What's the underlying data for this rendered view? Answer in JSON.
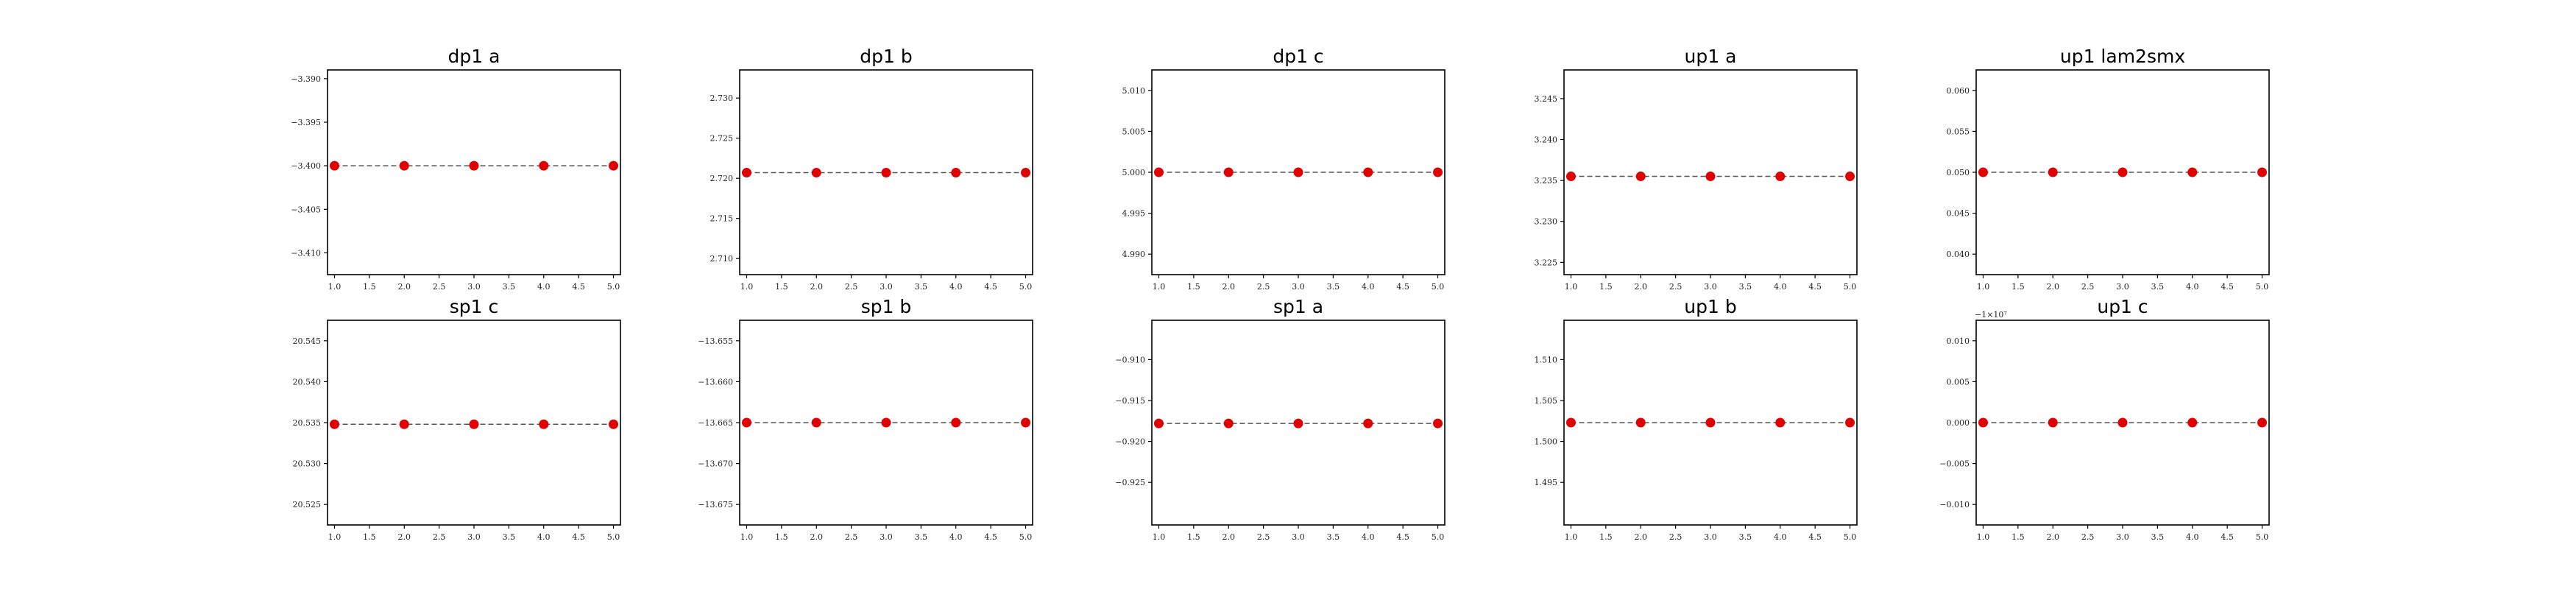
{
  "chart_data": [
    {
      "type": "line",
      "title": "dp1 a",
      "x": [
        1,
        2,
        3,
        4,
        5
      ],
      "y": [
        -3.4,
        -3.4,
        -3.4,
        -3.4,
        -3.4
      ],
      "xlim": [
        0.9,
        5.1
      ],
      "ylim": [
        -3.4125,
        -3.389
      ],
      "xticks": [
        "1.0",
        "1.5",
        "2.0",
        "2.5",
        "3.0",
        "3.5",
        "4.0",
        "4.5",
        "5.0"
      ],
      "yticks": [
        "−3.390",
        "−3.395",
        "−3.400",
        "−3.405",
        "−3.410"
      ],
      "yticks_values": [
        -3.39,
        -3.395,
        -3.4,
        -3.405,
        -3.41
      ],
      "offset": "",
      "line_style": "dashed",
      "marker_color": "#e00000"
    },
    {
      "type": "line",
      "title": "dp1 b",
      "x": [
        1,
        2,
        3,
        4,
        5
      ],
      "y": [
        2.7207,
        2.7207,
        2.7207,
        2.7207,
        2.7207
      ],
      "xlim": [
        0.9,
        5.1
      ],
      "ylim": [
        2.708,
        2.7335
      ],
      "xticks": [
        "1.0",
        "1.5",
        "2.0",
        "2.5",
        "3.0",
        "3.5",
        "4.0",
        "4.5",
        "5.0"
      ],
      "yticks": [
        "2.730",
        "2.725",
        "2.720",
        "2.715",
        "2.710"
      ],
      "yticks_values": [
        2.73,
        2.725,
        2.72,
        2.715,
        2.71
      ],
      "offset": "",
      "line_style": "dashed",
      "marker_color": "#e00000"
    },
    {
      "type": "line",
      "title": "dp1 c",
      "x": [
        1,
        2,
        3,
        4,
        5
      ],
      "y": [
        5.0,
        5.0,
        5.0,
        5.0,
        5.0
      ],
      "xlim": [
        0.9,
        5.1
      ],
      "ylim": [
        4.9875,
        5.0125
      ],
      "xticks": [
        "1.0",
        "1.5",
        "2.0",
        "2.5",
        "3.0",
        "3.5",
        "4.0",
        "4.5",
        "5.0"
      ],
      "yticks": [
        "5.010",
        "5.005",
        "5.000",
        "4.995",
        "4.990"
      ],
      "yticks_values": [
        5.01,
        5.005,
        5.0,
        4.995,
        4.99
      ],
      "offset": "",
      "line_style": "dashed",
      "marker_color": "#e00000"
    },
    {
      "type": "line",
      "title": "up1 a",
      "x": [
        1,
        2,
        3,
        4,
        5
      ],
      "y": [
        3.2355,
        3.2355,
        3.2355,
        3.2355,
        3.2355
      ],
      "xlim": [
        0.9,
        5.1
      ],
      "ylim": [
        3.2235,
        3.2485
      ],
      "xticks": [
        "1.0",
        "1.5",
        "2.0",
        "2.5",
        "3.0",
        "3.5",
        "4.0",
        "4.5",
        "5.0"
      ],
      "yticks": [
        "3.245",
        "3.240",
        "3.235",
        "3.230",
        "3.225"
      ],
      "yticks_values": [
        3.245,
        3.24,
        3.235,
        3.23,
        3.225
      ],
      "offset": "",
      "line_style": "dashed",
      "marker_color": "#e00000"
    },
    {
      "type": "line",
      "title": "up1 lam2smx",
      "x": [
        1,
        2,
        3,
        4,
        5
      ],
      "y": [
        0.05,
        0.05,
        0.05,
        0.05,
        0.05
      ],
      "xlim": [
        0.9,
        5.1
      ],
      "ylim": [
        0.0375,
        0.0625
      ],
      "xticks": [
        "1.0",
        "1.5",
        "2.0",
        "2.5",
        "3.0",
        "3.5",
        "4.0",
        "4.5",
        "5.0"
      ],
      "yticks": [
        "0.060",
        "0.055",
        "0.050",
        "0.045",
        "0.040"
      ],
      "yticks_values": [
        0.06,
        0.055,
        0.05,
        0.045,
        0.04
      ],
      "offset": "",
      "line_style": "dashed",
      "marker_color": "#e00000"
    },
    {
      "type": "line",
      "title": "sp1 c",
      "x": [
        1,
        2,
        3,
        4,
        5
      ],
      "y": [
        20.5348,
        20.5348,
        20.5348,
        20.5348,
        20.5348
      ],
      "xlim": [
        0.9,
        5.1
      ],
      "ylim": [
        20.5225,
        20.5475
      ],
      "xticks": [
        "1.0",
        "1.5",
        "2.0",
        "2.5",
        "3.0",
        "3.5",
        "4.0",
        "4.5",
        "5.0"
      ],
      "yticks": [
        "20.545",
        "20.540",
        "20.535",
        "20.530",
        "20.525"
      ],
      "yticks_values": [
        20.545,
        20.54,
        20.535,
        20.53,
        20.525
      ],
      "offset": "",
      "line_style": "dashed",
      "marker_color": "#e00000"
    },
    {
      "type": "line",
      "title": "sp1 b",
      "x": [
        1,
        2,
        3,
        4,
        5
      ],
      "y": [
        -13.665,
        -13.665,
        -13.665,
        -13.665,
        -13.665
      ],
      "xlim": [
        0.9,
        5.1
      ],
      "ylim": [
        -13.6775,
        -13.6525
      ],
      "xticks": [
        "1.0",
        "1.5",
        "2.0",
        "2.5",
        "3.0",
        "3.5",
        "4.0",
        "4.5",
        "5.0"
      ],
      "yticks": [
        "−13.655",
        "−13.660",
        "−13.665",
        "−13.670",
        "−13.675"
      ],
      "yticks_values": [
        -13.655,
        -13.66,
        -13.665,
        -13.67,
        -13.675
      ],
      "offset": "",
      "line_style": "dashed",
      "marker_color": "#e00000"
    },
    {
      "type": "line",
      "title": "sp1 a",
      "x": [
        1,
        2,
        3,
        4,
        5
      ],
      "y": [
        -0.9178,
        -0.9178,
        -0.9178,
        -0.9178,
        -0.9178
      ],
      "xlim": [
        0.9,
        5.1
      ],
      "ylim": [
        -0.9302,
        -0.9052
      ],
      "xticks": [
        "1.0",
        "1.5",
        "2.0",
        "2.5",
        "3.0",
        "3.5",
        "4.0",
        "4.5",
        "5.0"
      ],
      "yticks": [
        "−0.910",
        "−0.915",
        "−0.920",
        "−0.925"
      ],
      "yticks_values": [
        -0.91,
        -0.915,
        -0.92,
        -0.925
      ],
      "offset": "",
      "line_style": "dashed",
      "marker_color": "#e00000"
    },
    {
      "type": "line",
      "title": "up1 b",
      "x": [
        1,
        2,
        3,
        4,
        5
      ],
      "y": [
        1.5023,
        1.5023,
        1.5023,
        1.5023,
        1.5023
      ],
      "xlim": [
        0.9,
        5.1
      ],
      "ylim": [
        1.4898,
        1.5148
      ],
      "xticks": [
        "1.0",
        "1.5",
        "2.0",
        "2.5",
        "3.0",
        "3.5",
        "4.0",
        "4.5",
        "5.0"
      ],
      "yticks": [
        "1.510",
        "1.505",
        "1.500",
        "1.495"
      ],
      "yticks_values": [
        1.51,
        1.505,
        1.5,
        1.495
      ],
      "offset": "",
      "line_style": "dashed",
      "marker_color": "#e00000"
    },
    {
      "type": "line",
      "title": "up1 c",
      "x": [
        1,
        2,
        3,
        4,
        5
      ],
      "y": [
        0.0,
        0.0,
        0.0,
        0.0,
        0.0
      ],
      "xlim": [
        0.9,
        5.1
      ],
      "ylim": [
        -0.0125,
        0.0125
      ],
      "xticks": [
        "1.0",
        "1.5",
        "2.0",
        "2.5",
        "3.0",
        "3.5",
        "4.0",
        "4.5",
        "5.0"
      ],
      "yticks": [
        "0.010",
        "0.005",
        "0.000",
        "−0.005",
        "−0.010"
      ],
      "yticks_values": [
        0.01,
        0.005,
        0.0,
        -0.005,
        -0.01
      ],
      "offset": "−1×10⁷",
      "line_style": "dashed",
      "marker_color": "#e00000"
    }
  ]
}
